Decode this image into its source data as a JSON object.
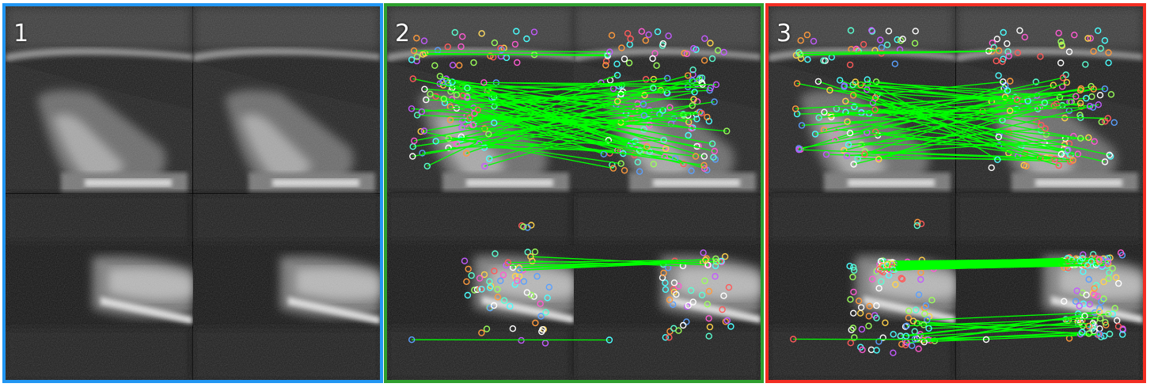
{
  "panels": [
    {
      "label": "1",
      "border_color": "#2196f3",
      "variant": "plain"
    },
    {
      "label": "2",
      "border_color": "#2ea02e",
      "variant": "sparse-matches"
    },
    {
      "label": "3",
      "border_color": "#f32d22",
      "variant": "dense-matches"
    }
  ],
  "match_line_color": "#00ff00"
}
